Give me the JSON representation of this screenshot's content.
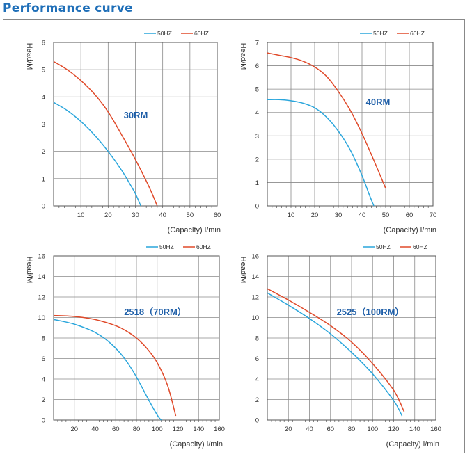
{
  "page": {
    "title": "Performance curve"
  },
  "colors": {
    "hz50": "#2aa6dc",
    "hz60": "#e04a2a",
    "title": "#1f6fb8",
    "model": "#1f5fa8"
  },
  "chart_data": [
    {
      "type": "line",
      "title": "30RM",
      "xlabel": "(Capaclty)  l/min",
      "ylabel": "Head/M",
      "xlim": [
        0,
        60
      ],
      "ylim": [
        0,
        6
      ],
      "xticks": [
        10,
        20,
        30,
        40,
        50,
        60
      ],
      "yticks": [
        0,
        1,
        2,
        3,
        4,
        5,
        6
      ],
      "grid": true,
      "legend": "top-right",
      "series": [
        {
          "name": "50HZ",
          "x": [
            0,
            5,
            10,
            15,
            20,
            25,
            28,
            30,
            32
          ],
          "y": [
            3.8,
            3.5,
            3.1,
            2.6,
            2.0,
            1.3,
            0.8,
            0.45,
            0
          ]
        },
        {
          "name": "60HZ",
          "x": [
            0,
            5,
            10,
            15,
            20,
            25,
            30,
            35,
            38
          ],
          "y": [
            5.3,
            5.0,
            4.6,
            4.1,
            3.45,
            2.6,
            1.7,
            0.7,
            0
          ]
        }
      ]
    },
    {
      "type": "line",
      "title": "40RM",
      "xlabel": "(Capaclty)  l/min",
      "ylabel": "Head/M",
      "xlim": [
        0,
        70
      ],
      "ylim": [
        0,
        7
      ],
      "xticks": [
        10,
        20,
        30,
        40,
        50,
        60,
        70
      ],
      "yticks": [
        0,
        1,
        2,
        3,
        4,
        5,
        6,
        7
      ],
      "grid": true,
      "legend": "top-right",
      "series": [
        {
          "name": "50HZ",
          "x": [
            0,
            5,
            10,
            15,
            20,
            25,
            30,
            35,
            40,
            43,
            45
          ],
          "y": [
            4.55,
            4.55,
            4.5,
            4.4,
            4.2,
            3.8,
            3.2,
            2.4,
            1.3,
            0.5,
            0
          ]
        },
        {
          "name": "60HZ",
          "x": [
            0,
            5,
            10,
            15,
            20,
            25,
            30,
            35,
            40,
            45,
            50
          ],
          "y": [
            6.55,
            6.45,
            6.35,
            6.2,
            5.95,
            5.55,
            4.9,
            4.1,
            3.1,
            1.95,
            0.75
          ]
        }
      ]
    },
    {
      "type": "line",
      "title": "2518（70RM）",
      "xlabel": "(Capaclty)  l/min",
      "ylabel": "Head/M",
      "xlim": [
        0,
        160
      ],
      "ylim": [
        0,
        16
      ],
      "xticks": [
        20,
        40,
        60,
        80,
        100,
        120,
        140,
        160
      ],
      "yticks": [
        0,
        2,
        4,
        6,
        8,
        10,
        12,
        14,
        16
      ],
      "grid": true,
      "legend": "top-right",
      "series": [
        {
          "name": "50HZ",
          "x": [
            0,
            10,
            20,
            30,
            40,
            50,
            60,
            70,
            80,
            90,
            100,
            104
          ],
          "y": [
            9.8,
            9.6,
            9.35,
            9.0,
            8.55,
            7.9,
            7.0,
            5.8,
            4.2,
            2.3,
            0.5,
            0
          ]
        },
        {
          "name": "60HZ",
          "x": [
            0,
            20,
            40,
            60,
            70,
            80,
            90,
            100,
            110,
            118
          ],
          "y": [
            10.2,
            10.1,
            9.8,
            9.2,
            8.7,
            8.0,
            7.0,
            5.6,
            3.4,
            0.4
          ]
        }
      ]
    },
    {
      "type": "line",
      "title": "2525（100RM）",
      "xlabel": "(Capaclty)  l/min",
      "ylabel": "Head/M",
      "xlim": [
        0,
        160
      ],
      "ylim": [
        0,
        16
      ],
      "xticks": [
        20,
        40,
        60,
        80,
        100,
        120,
        140,
        160
      ],
      "yticks": [
        0,
        2,
        4,
        6,
        8,
        10,
        12,
        14,
        16
      ],
      "grid": true,
      "legend": "top-right",
      "series": [
        {
          "name": "50HZ",
          "x": [
            0,
            20,
            40,
            60,
            80,
            100,
            120,
            128
          ],
          "y": [
            12.4,
            11.2,
            9.9,
            8.4,
            6.6,
            4.5,
            1.9,
            0.4
          ]
        },
        {
          "name": "60HZ",
          "x": [
            0,
            20,
            40,
            60,
            80,
            100,
            120,
            130
          ],
          "y": [
            12.8,
            11.7,
            10.5,
            9.2,
            7.6,
            5.5,
            2.9,
            0.8
          ]
        }
      ]
    }
  ]
}
